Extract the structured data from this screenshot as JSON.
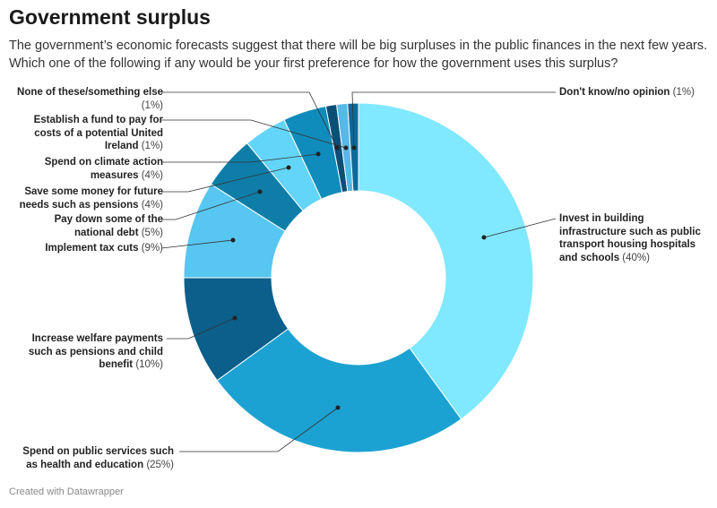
{
  "title": "Government surplus",
  "subtitle": "The government’s economic forecasts suggest that there will be big surpluses in the public finances in the next few years. Which one of the following if any would be your first preference for how the government uses this surplus?",
  "footer": "Created with Datawrapper",
  "chart_data": {
    "type": "pie",
    "donut": true,
    "categories": [
      "Invest in building infrastructure such as public transport housing hospitals and schools",
      "Spend on public services such as health and education",
      "Increase welfare payments such as pensions and child benefit",
      "Implement tax cuts",
      "Pay down some of the national debt",
      "Save some money for future needs such as pensions",
      "Spend on climate action measures",
      "None of these/something else",
      "Establish a fund to pay for costs of a potential United Ireland",
      "Don't know/no opinion"
    ],
    "values": [
      40,
      25,
      10,
      9,
      5,
      4,
      4,
      1,
      1,
      1
    ],
    "value_labels": [
      "(40%)",
      "(25%)",
      "(10%)",
      "(9%)",
      "(5%)",
      "(4%)",
      "(4%)",
      "(1%)",
      "(1%)",
      "(1%)"
    ],
    "colors": [
      "#80e8ff",
      "#1ca2d2",
      "#0b5f8a",
      "#57c6f1",
      "#0e7ea8",
      "#63d5f8",
      "#0f8cbb",
      "#0b4f77",
      "#56b9e9",
      "#0c6a9a"
    ]
  }
}
